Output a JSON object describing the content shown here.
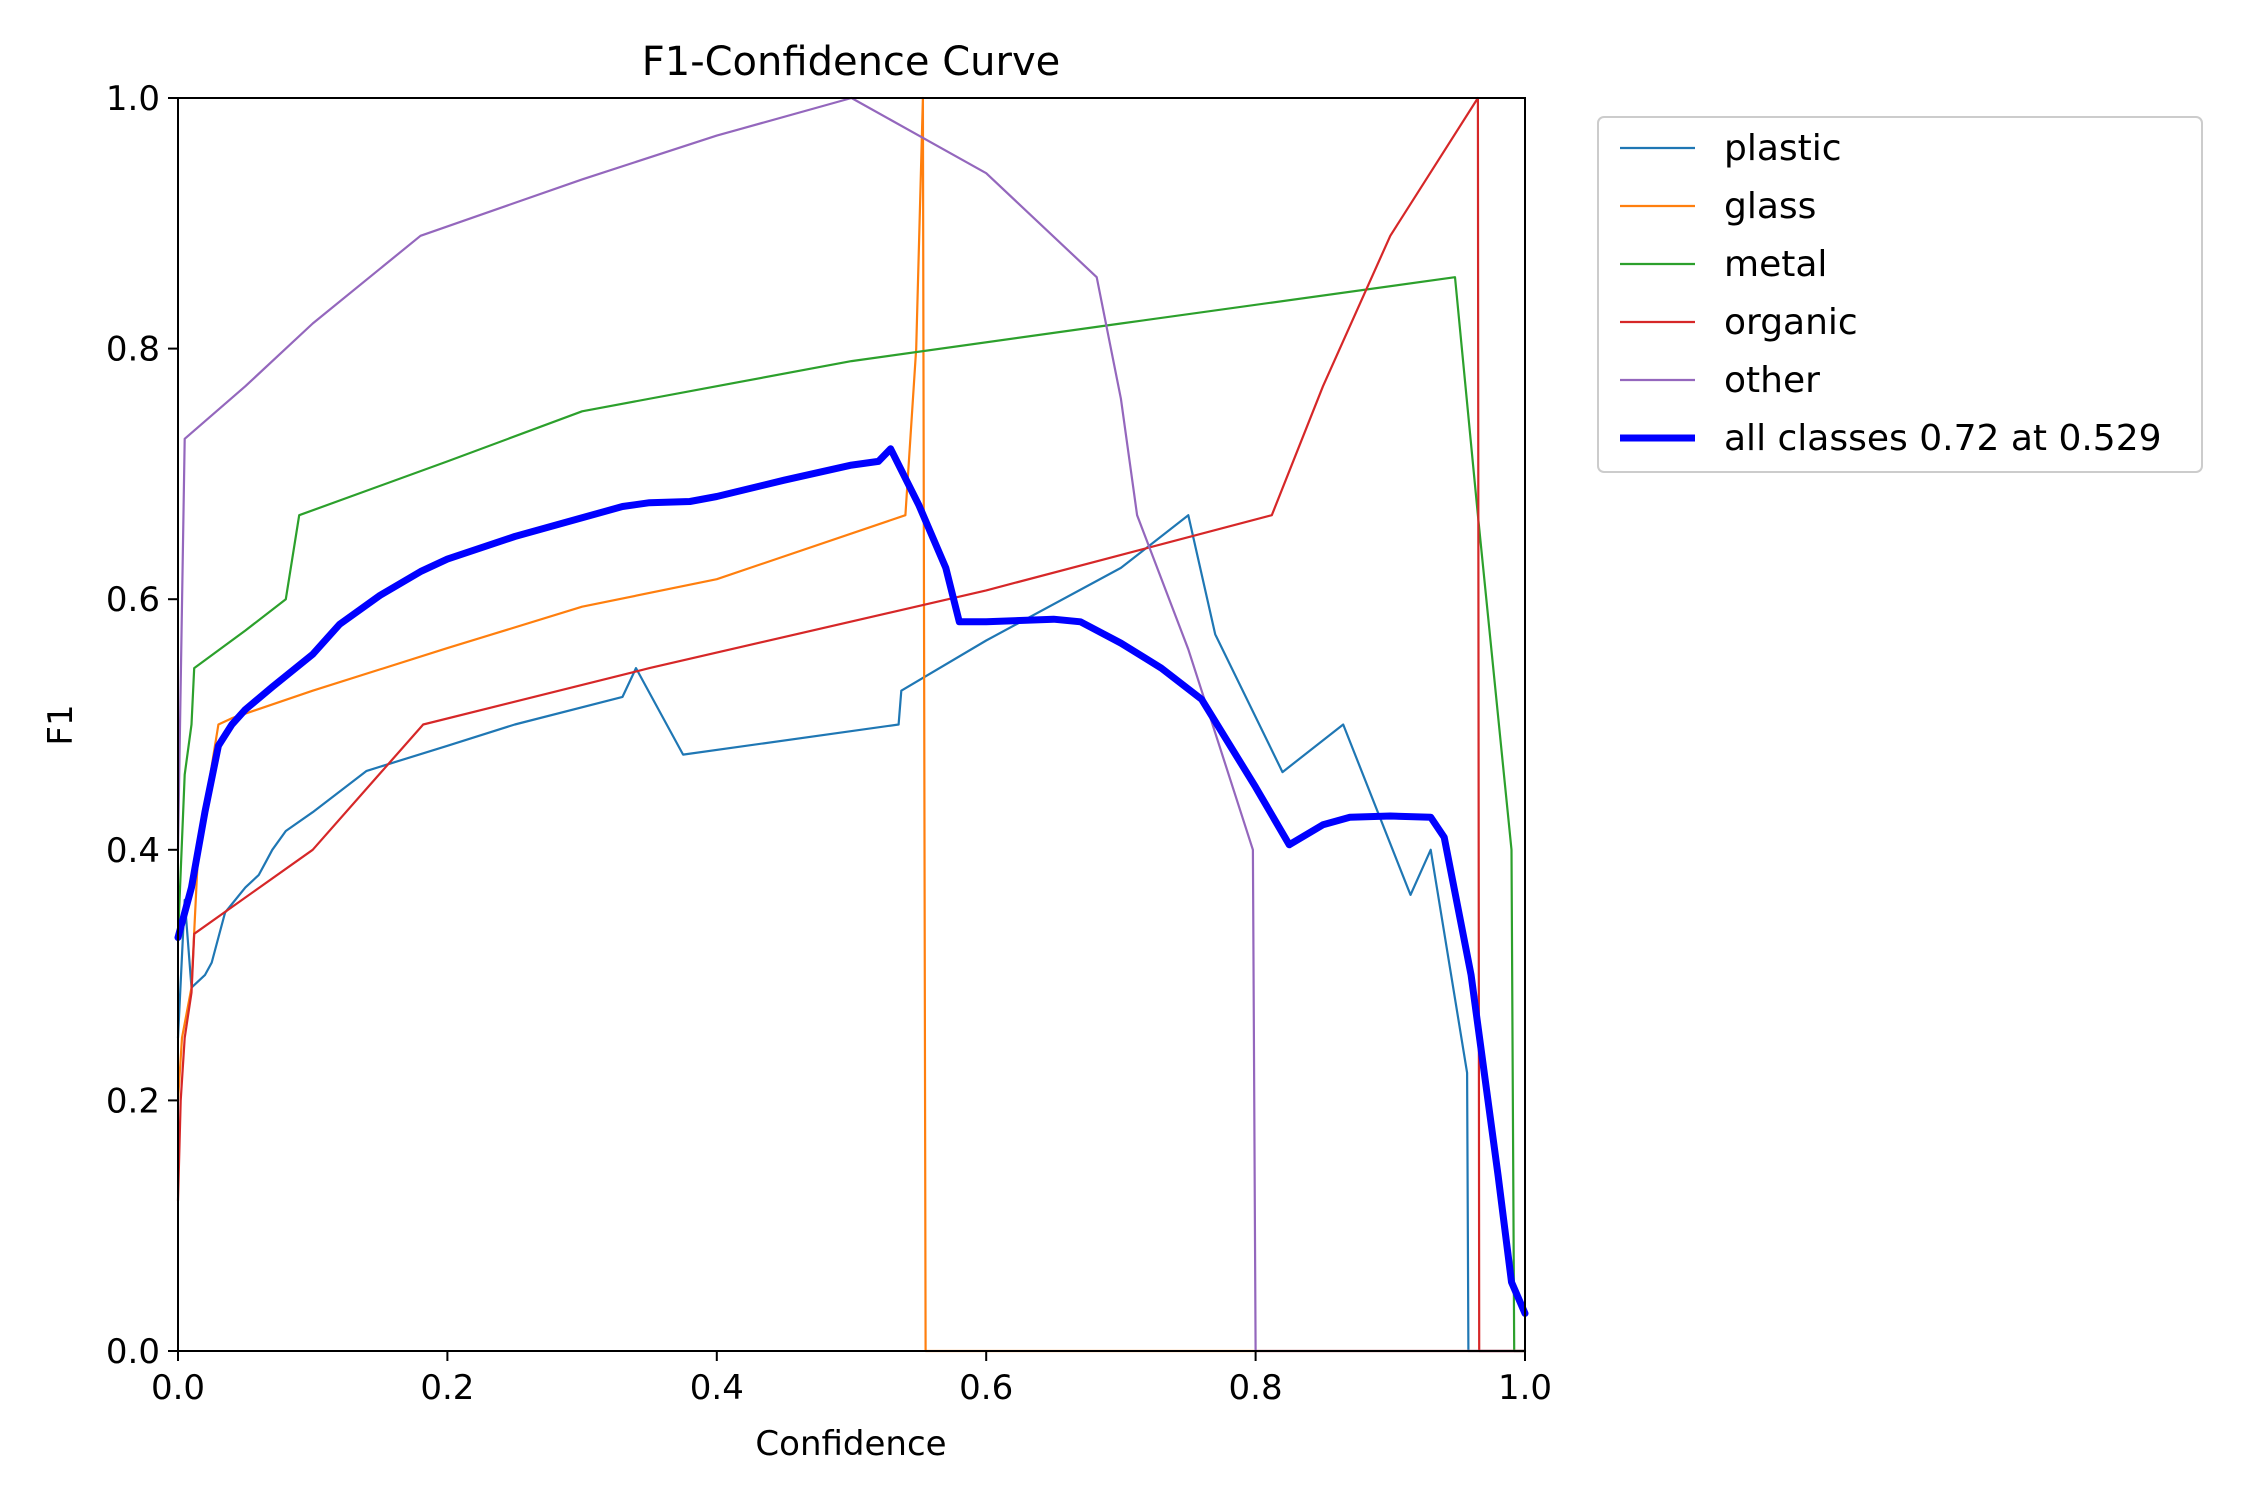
{
  "chart_data": {
    "type": "line",
    "title": "F1-Confidence Curve",
    "xlabel": "Confidence",
    "ylabel": "F1",
    "xlim": [
      0.0,
      1.0
    ],
    "ylim": [
      0.0,
      1.0
    ],
    "x_ticks": [
      "0.0",
      "0.2",
      "0.4",
      "0.6",
      "0.8",
      "1.0"
    ],
    "y_ticks": [
      "0.0",
      "0.2",
      "0.4",
      "0.6",
      "0.8",
      "1.0"
    ],
    "grid": false,
    "legend_position": "outside upper right",
    "series": [
      {
        "name": "plastic",
        "color": "#1f77b4",
        "width": "thin",
        "points": [
          [
            0.0,
            0.25
          ],
          [
            0.005,
            0.36
          ],
          [
            0.01,
            0.29
          ],
          [
            0.02,
            0.3
          ],
          [
            0.025,
            0.31
          ],
          [
            0.03,
            0.33
          ],
          [
            0.035,
            0.35
          ],
          [
            0.05,
            0.37
          ],
          [
            0.06,
            0.38
          ],
          [
            0.065,
            0.39
          ],
          [
            0.07,
            0.4
          ],
          [
            0.08,
            0.415
          ],
          [
            0.1,
            0.43
          ],
          [
            0.14,
            0.463
          ],
          [
            0.2,
            0.483
          ],
          [
            0.25,
            0.5
          ],
          [
            0.33,
            0.522
          ],
          [
            0.34,
            0.545
          ],
          [
            0.375,
            0.476
          ],
          [
            0.535,
            0.5
          ],
          [
            0.537,
            0.527
          ],
          [
            0.6,
            0.567
          ],
          [
            0.7,
            0.625
          ],
          [
            0.75,
            0.667
          ],
          [
            0.77,
            0.572
          ],
          [
            0.82,
            0.462
          ],
          [
            0.865,
            0.5
          ],
          [
            0.915,
            0.364
          ],
          [
            0.93,
            0.4
          ],
          [
            0.957,
            0.222
          ],
          [
            0.958,
            0.0
          ],
          [
            1.0,
            0.0
          ]
        ]
      },
      {
        "name": "glass",
        "color": "#ff7f0e",
        "width": "thin",
        "points": [
          [
            0.0,
            0.2
          ],
          [
            0.003,
            0.25
          ],
          [
            0.01,
            0.29
          ],
          [
            0.015,
            0.4
          ],
          [
            0.03,
            0.5
          ],
          [
            0.04,
            0.505
          ],
          [
            0.1,
            0.527
          ],
          [
            0.2,
            0.561
          ],
          [
            0.3,
            0.594
          ],
          [
            0.4,
            0.616
          ],
          [
            0.54,
            0.667
          ],
          [
            0.548,
            0.8
          ],
          [
            0.553,
            1.0
          ],
          [
            0.555,
            0.0
          ],
          [
            1.0,
            0.0
          ]
        ]
      },
      {
        "name": "metal",
        "color": "#2ca02c",
        "width": "thin",
        "points": [
          [
            0.0,
            0.33
          ],
          [
            0.005,
            0.46
          ],
          [
            0.01,
            0.5
          ],
          [
            0.012,
            0.545
          ],
          [
            0.05,
            0.575
          ],
          [
            0.08,
            0.6
          ],
          [
            0.09,
            0.667
          ],
          [
            0.2,
            0.71
          ],
          [
            0.3,
            0.75
          ],
          [
            0.5,
            0.79
          ],
          [
            0.7,
            0.82
          ],
          [
            0.948,
            0.857
          ],
          [
            0.965,
            0.667
          ],
          [
            0.99,
            0.4
          ],
          [
            0.992,
            0.0
          ],
          [
            1.0,
            0.0
          ]
        ]
      },
      {
        "name": "organic",
        "color": "#d62728",
        "width": "thin",
        "points": [
          [
            0.0,
            0.12
          ],
          [
            0.002,
            0.2
          ],
          [
            0.005,
            0.25
          ],
          [
            0.01,
            0.286
          ],
          [
            0.012,
            0.333
          ],
          [
            0.1,
            0.4
          ],
          [
            0.182,
            0.5
          ],
          [
            0.35,
            0.545
          ],
          [
            0.6,
            0.607
          ],
          [
            0.812,
            0.667
          ],
          [
            0.85,
            0.77
          ],
          [
            0.9,
            0.89
          ],
          [
            0.965,
            1.0
          ],
          [
            0.966,
            0.0
          ],
          [
            1.0,
            0.0
          ]
        ]
      },
      {
        "name": "other",
        "color": "#9467bd",
        "width": "thin",
        "points": [
          [
            0.0,
            0.4
          ],
          [
            0.005,
            0.728
          ],
          [
            0.05,
            0.77
          ],
          [
            0.1,
            0.82
          ],
          [
            0.18,
            0.89
          ],
          [
            0.3,
            0.935
          ],
          [
            0.4,
            0.97
          ],
          [
            0.5,
            1.0
          ],
          [
            0.6,
            0.94
          ],
          [
            0.682,
            0.857
          ],
          [
            0.7,
            0.76
          ],
          [
            0.712,
            0.667
          ],
          [
            0.75,
            0.56
          ],
          [
            0.798,
            0.4
          ],
          [
            0.8,
            0.0
          ],
          [
            1.0,
            0.0
          ]
        ]
      },
      {
        "name": "all classes 0.72 at 0.529",
        "color": "#0000ff",
        "width": "thick",
        "points": [
          [
            0.0,
            0.33
          ],
          [
            0.01,
            0.37
          ],
          [
            0.02,
            0.43
          ],
          [
            0.03,
            0.483
          ],
          [
            0.04,
            0.5
          ],
          [
            0.05,
            0.512
          ],
          [
            0.07,
            0.53
          ],
          [
            0.1,
            0.556
          ],
          [
            0.12,
            0.58
          ],
          [
            0.15,
            0.603
          ],
          [
            0.18,
            0.622
          ],
          [
            0.2,
            0.632
          ],
          [
            0.25,
            0.65
          ],
          [
            0.3,
            0.665
          ],
          [
            0.33,
            0.674
          ],
          [
            0.35,
            0.677
          ],
          [
            0.38,
            0.678
          ],
          [
            0.4,
            0.682
          ],
          [
            0.45,
            0.695
          ],
          [
            0.5,
            0.707
          ],
          [
            0.52,
            0.71
          ],
          [
            0.529,
            0.72
          ],
          [
            0.55,
            0.675
          ],
          [
            0.57,
            0.625
          ],
          [
            0.58,
            0.582
          ],
          [
            0.6,
            0.582
          ],
          [
            0.65,
            0.584
          ],
          [
            0.67,
            0.582
          ],
          [
            0.7,
            0.565
          ],
          [
            0.73,
            0.545
          ],
          [
            0.76,
            0.52
          ],
          [
            0.8,
            0.45
          ],
          [
            0.825,
            0.404
          ],
          [
            0.85,
            0.42
          ],
          [
            0.87,
            0.426
          ],
          [
            0.9,
            0.427
          ],
          [
            0.93,
            0.426
          ],
          [
            0.94,
            0.41
          ],
          [
            0.96,
            0.3
          ],
          [
            0.98,
            0.14
          ],
          [
            0.99,
            0.055
          ],
          [
            1.0,
            0.03
          ]
        ]
      }
    ]
  }
}
